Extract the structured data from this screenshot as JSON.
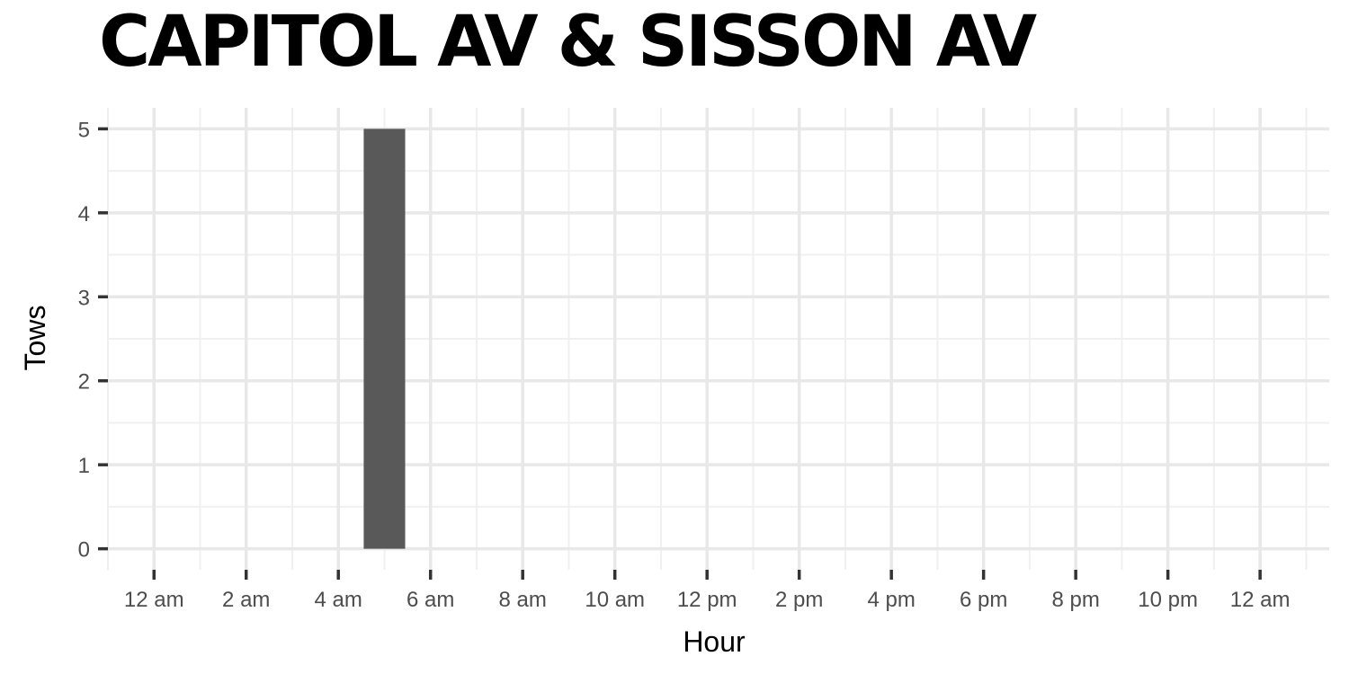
{
  "chart_data": {
    "type": "bar",
    "title": "CAPITOL AV & SISSON AV",
    "xlabel": "Hour",
    "ylabel": "Tows",
    "x_tick_labels": [
      "12 am",
      "2 am",
      "4 am",
      "6 am",
      "8 am",
      "10 am",
      "12 pm",
      "2 pm",
      "4 pm",
      "6 pm",
      "8 pm",
      "10 pm",
      "12 am"
    ],
    "x_tick_hours": [
      0,
      2,
      4,
      6,
      8,
      10,
      12,
      14,
      16,
      18,
      20,
      22,
      24
    ],
    "y_ticks": [
      0,
      1,
      2,
      3,
      4,
      5
    ],
    "xlim": [
      -1,
      25.5
    ],
    "ylim": [
      -0.25,
      5.25
    ],
    "bar_color": "#595959",
    "grid": true,
    "bars": [
      {
        "hour": 5,
        "value": 5
      }
    ]
  }
}
